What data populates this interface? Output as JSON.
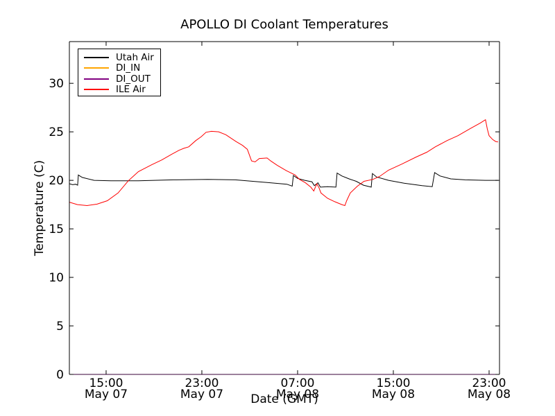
{
  "chart_data": {
    "type": "line",
    "title": "APOLLO DI Coolant Temperatures",
    "xlabel": "Date (GMT)",
    "ylabel": "Temperature (C)",
    "x_unit": "hours since May 07 00:00 GMT",
    "xlim": [
      11.93,
      47.87
    ],
    "ylim": [
      0,
      34.3
    ],
    "grid": false,
    "xticks": [
      {
        "value": 15,
        "line1": "15:00",
        "line2": "May 07"
      },
      {
        "value": 23,
        "line1": "23:00",
        "line2": "May 07"
      },
      {
        "value": 31,
        "line1": "07:00",
        "line2": "May 08"
      },
      {
        "value": 39,
        "line1": "15:00",
        "line2": "May 08"
      },
      {
        "value": 47,
        "line1": "23:00",
        "line2": "May 08"
      }
    ],
    "yticks": [
      0,
      5,
      10,
      15,
      20,
      25,
      30
    ],
    "legend": {
      "position": "upper left",
      "entries": [
        {
          "label": "Utah Air",
          "color": "#000000"
        },
        {
          "label": "DI_IN",
          "color": "#ffa500"
        },
        {
          "label": "DI_OUT",
          "color": "#800080"
        },
        {
          "label": "ILE Air",
          "color": "#ff0000"
        }
      ]
    },
    "series": [
      {
        "name": "Utah Air",
        "color": "#000000",
        "width": 1,
        "points": [
          [
            11.93,
            19.65
          ],
          [
            12.2,
            19.55
          ],
          [
            12.45,
            19.6
          ],
          [
            12.62,
            19.5
          ],
          [
            12.68,
            20.55
          ],
          [
            13.0,
            20.3
          ],
          [
            14.0,
            20.0
          ],
          [
            15.4,
            19.95
          ],
          [
            17.7,
            19.95
          ],
          [
            20.6,
            20.05
          ],
          [
            23.5,
            20.1
          ],
          [
            25.8,
            20.05
          ],
          [
            28.2,
            19.8
          ],
          [
            30.1,
            19.6
          ],
          [
            30.55,
            19.4
          ],
          [
            30.65,
            20.5
          ],
          [
            31.0,
            20.2
          ],
          [
            31.6,
            20.0
          ],
          [
            32.2,
            19.85
          ],
          [
            32.4,
            19.45
          ],
          [
            32.7,
            19.75
          ],
          [
            32.9,
            19.3
          ],
          [
            33.5,
            19.35
          ],
          [
            34.2,
            19.3
          ],
          [
            34.3,
            20.75
          ],
          [
            34.7,
            20.45
          ],
          [
            35.3,
            20.15
          ],
          [
            35.9,
            19.9
          ],
          [
            36.5,
            19.5
          ],
          [
            37.15,
            19.3
          ],
          [
            37.25,
            20.7
          ],
          [
            37.6,
            20.35
          ],
          [
            38.6,
            20.0
          ],
          [
            39.9,
            19.7
          ],
          [
            41.4,
            19.45
          ],
          [
            42.25,
            19.35
          ],
          [
            42.45,
            20.8
          ],
          [
            42.9,
            20.45
          ],
          [
            43.8,
            20.15
          ],
          [
            45.0,
            20.05
          ],
          [
            46.7,
            20.0
          ],
          [
            47.75,
            20.0
          ]
        ]
      },
      {
        "name": "DI_IN",
        "color": "#ffa500",
        "width": 1,
        "points": [
          [
            11.93,
            0
          ],
          [
            47.87,
            0
          ]
        ]
      },
      {
        "name": "DI_OUT",
        "color": "#800080",
        "width": 1,
        "points": [
          [
            11.93,
            0
          ],
          [
            47.87,
            0
          ]
        ]
      },
      {
        "name": "ILE Air",
        "color": "#ff0000",
        "width": 1,
        "points": [
          [
            11.93,
            17.75
          ],
          [
            12.6,
            17.5
          ],
          [
            13.4,
            17.4
          ],
          [
            14.25,
            17.55
          ],
          [
            15.1,
            17.9
          ],
          [
            16.0,
            18.7
          ],
          [
            16.85,
            19.95
          ],
          [
            17.7,
            20.9
          ],
          [
            18.8,
            21.6
          ],
          [
            19.65,
            22.1
          ],
          [
            20.5,
            22.7
          ],
          [
            21.1,
            23.1
          ],
          [
            21.5,
            23.3
          ],
          [
            21.9,
            23.45
          ],
          [
            22.5,
            24.1
          ],
          [
            22.95,
            24.5
          ],
          [
            23.35,
            24.95
          ],
          [
            23.8,
            25.05
          ],
          [
            24.4,
            25.0
          ],
          [
            25.0,
            24.7
          ],
          [
            25.85,
            24.0
          ],
          [
            26.4,
            23.6
          ],
          [
            26.8,
            23.2
          ],
          [
            27.15,
            22.0
          ],
          [
            27.45,
            21.9
          ],
          [
            27.8,
            22.25
          ],
          [
            28.45,
            22.3
          ],
          [
            28.75,
            22.0
          ],
          [
            29.3,
            21.55
          ],
          [
            30.05,
            21.0
          ],
          [
            30.8,
            20.55
          ],
          [
            31.15,
            20.1
          ],
          [
            31.65,
            19.75
          ],
          [
            32.1,
            19.3
          ],
          [
            32.35,
            18.9
          ],
          [
            32.6,
            19.65
          ],
          [
            32.8,
            19.2
          ],
          [
            32.95,
            18.7
          ],
          [
            33.5,
            18.15
          ],
          [
            34.1,
            17.8
          ],
          [
            34.7,
            17.5
          ],
          [
            34.95,
            17.4
          ],
          [
            35.1,
            17.9
          ],
          [
            35.4,
            18.7
          ],
          [
            36.0,
            19.4
          ],
          [
            36.55,
            19.9
          ],
          [
            37.3,
            20.1
          ],
          [
            37.85,
            20.4
          ],
          [
            38.6,
            21.05
          ],
          [
            39.75,
            21.7
          ],
          [
            40.9,
            22.4
          ],
          [
            41.8,
            22.9
          ],
          [
            42.5,
            23.45
          ],
          [
            43.5,
            24.1
          ],
          [
            44.4,
            24.6
          ],
          [
            45.45,
            25.35
          ],
          [
            46.25,
            25.9
          ],
          [
            46.7,
            26.25
          ],
          [
            46.85,
            25.3
          ],
          [
            47.0,
            24.6
          ],
          [
            47.3,
            24.2
          ],
          [
            47.55,
            24.0
          ],
          [
            47.75,
            23.95
          ]
        ]
      }
    ]
  }
}
